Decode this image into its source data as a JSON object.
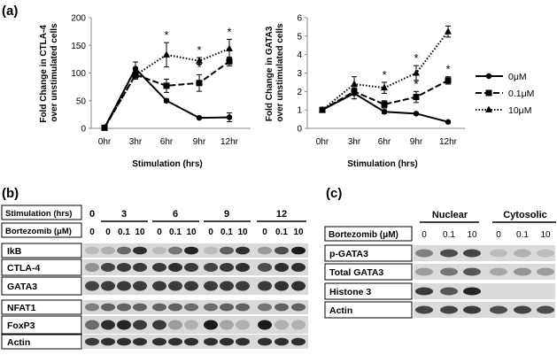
{
  "panels": {
    "a": "(a)",
    "b": "(b)",
    "c": "(c)"
  },
  "chart_data": [
    {
      "type": "line",
      "ylabel_lines": [
        "Fold Change in CTLA-4",
        "over unstimulated cells"
      ],
      "xlabel": "Stimulation (hrs)",
      "categories": [
        "0hr",
        "3hr",
        "6hr",
        "9hr",
        "12hr"
      ],
      "ylim": [
        0,
        200
      ],
      "yticks": [
        "0",
        "50",
        "100",
        "150",
        "200"
      ],
      "grid": false,
      "series": [
        {
          "name": "0μM",
          "values": [
            1,
            108,
            50,
            19,
            20
          ],
          "err": [
            0,
            12,
            3,
            2,
            8
          ]
        },
        {
          "name": "0.1μM",
          "values": [
            1,
            97,
            77,
            82,
            121
          ],
          "err": [
            0,
            8,
            12,
            15,
            8
          ]
        },
        {
          "name": "10μM",
          "values": [
            1,
            96,
            133,
            122,
            144
          ],
          "err": [
            0,
            6,
            22,
            6,
            17
          ]
        }
      ],
      "star_labels": [
        "*",
        "*",
        "*",
        "*"
      ]
    },
    {
      "type": "line",
      "ylabel_lines": [
        "Fold Change in GATA3",
        "over unstimulated cells"
      ],
      "xlabel": "Stimulation (hrs)",
      "categories": [
        "0hr",
        "3hr",
        "6hr",
        "9hr",
        "12hr"
      ],
      "ylim": [
        0,
        6
      ],
      "yticks": [
        "0",
        "1",
        "2",
        "3",
        "4",
        "5",
        "6"
      ],
      "grid": false,
      "legend_position": "right",
      "series": [
        {
          "name": "0μM",
          "values": [
            1,
            1.9,
            0.9,
            0.8,
            0.35
          ],
          "err": [
            0,
            0.3,
            0.1,
            0.05,
            0.05
          ]
        },
        {
          "name": "0.1μM",
          "values": [
            1,
            2.0,
            1.3,
            1.7,
            2.6
          ],
          "err": [
            0,
            0.2,
            0.2,
            0.3,
            0.2
          ]
        },
        {
          "name": "10μM",
          "values": [
            1,
            2.4,
            2.2,
            3.0,
            5.25
          ],
          "err": [
            0,
            0.4,
            0.3,
            0.4,
            0.3
          ]
        }
      ],
      "star_labels": [
        "*",
        "*",
        "*",
        "*"
      ]
    }
  ],
  "blot_b": {
    "stim_label": "Stimulation (hrs)",
    "bort_label": "Bortezomib (μM)",
    "stim_groups": [
      "0",
      "3",
      "6",
      "9",
      "12"
    ],
    "bort_values": [
      "0",
      "0",
      "0.1",
      "10",
      "0",
      "0.1",
      "10",
      "0",
      "0.1",
      "10",
      "0",
      "0.1",
      "10"
    ],
    "rows": [
      "IkB",
      "CTLA-4",
      "GATA3",
      "NFAT1",
      "FoxP3",
      "Actin"
    ]
  },
  "blot_c": {
    "headers": [
      "Nuclear",
      "Cytosolic"
    ],
    "bort_label": "Bortezomib (μM)",
    "bort_values": [
      "0",
      "0.1",
      "10",
      "0",
      "0.1",
      "10"
    ],
    "rows": [
      "p-GATA3",
      "Total GATA3",
      "Histone 3",
      "Actin"
    ]
  }
}
